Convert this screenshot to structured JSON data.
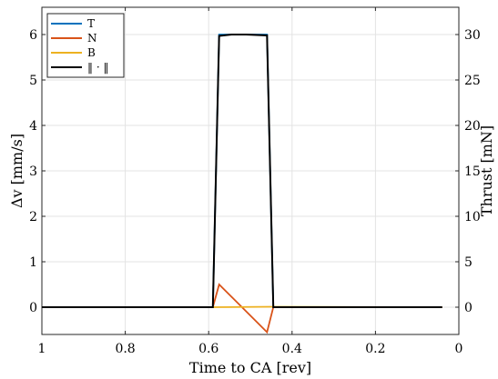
{
  "chart_data": {
    "type": "line",
    "xlabel": "Time to CA [rev]",
    "ylabel_left": "Δv [mm/s]",
    "ylabel_right": "Thrust [mN]",
    "x_reversed": true,
    "xlim": [
      0,
      1
    ],
    "ylim_left": [
      -0.6,
      6.6
    ],
    "ylim_right": [
      -3,
      33
    ],
    "x_ticks": [
      1,
      0.8,
      0.6,
      0.4,
      0.2,
      0
    ],
    "x_tick_labels": [
      "1",
      "0.8",
      "0.6",
      "0.4",
      "0.2",
      "0"
    ],
    "y_left_ticks": [
      0,
      1,
      2,
      3,
      4,
      5,
      6
    ],
    "y_left_tick_labels": [
      "0",
      "1",
      "2",
      "3",
      "4",
      "5",
      "6"
    ],
    "y_right_ticks": [
      0,
      5,
      10,
      15,
      20,
      25,
      30
    ],
    "y_right_tick_labels": [
      "0",
      "5",
      "10",
      "15",
      "20",
      "25",
      "30"
    ],
    "grid": true,
    "legend_position": "top-left",
    "series": [
      {
        "name": "T",
        "color": "#0072BD",
        "x": [
          1.0,
          0.59,
          0.575,
          0.545,
          0.51,
          0.46,
          0.445,
          0.04
        ],
        "y": [
          0,
          0,
          6.0,
          6.0,
          6.0,
          6.0,
          0,
          0
        ]
      },
      {
        "name": "N",
        "color": "#D95319",
        "x": [
          1.0,
          0.59,
          0.575,
          0.46,
          0.445,
          0.04
        ],
        "y": [
          0,
          0,
          0.5,
          -0.55,
          0,
          0
        ]
      },
      {
        "name": "B",
        "color": "#EDB120",
        "x": [
          1.0,
          0.59,
          0.445,
          0.04
        ],
        "y": [
          0,
          0,
          0.01,
          0
        ]
      },
      {
        "name": "‖ · ‖",
        "color": "#000000",
        "x": [
          1.0,
          0.59,
          0.575,
          0.545,
          0.51,
          0.46,
          0.445,
          0.04
        ],
        "y": [
          0,
          0,
          5.97,
          6.0,
          6.0,
          5.98,
          0,
          0
        ]
      }
    ]
  }
}
